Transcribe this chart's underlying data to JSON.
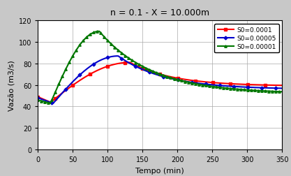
{
  "title": "n = 0.1 - X = 10.000m",
  "xlabel": "Tempo (min)",
  "ylabel": "Vazão (m3/s)",
  "xlim": [
    0,
    350
  ],
  "ylim": [
    0,
    120
  ],
  "xticks": [
    0,
    50,
    100,
    150,
    200,
    250,
    300,
    350
  ],
  "yticks": [
    0,
    20,
    40,
    60,
    80,
    100,
    120
  ],
  "series": [
    {
      "label": "S0=0.0001",
      "color": "#FF0000",
      "marker": "s",
      "peak_time": 132,
      "peak_val": 81,
      "start_val": 49,
      "min_val": 44,
      "min_time": 18,
      "end_val": 59,
      "marker_every": 25
    },
    {
      "label": "S0=0.00005",
      "color": "#0000CC",
      "marker": "D",
      "peak_time": 115,
      "peak_val": 87,
      "start_val": 48,
      "min_val": 43,
      "min_time": 22,
      "end_val": 56,
      "marker_every": 20
    },
    {
      "label": "S0=0.00001",
      "color": "#007700",
      "marker": "^",
      "peak_time": 88,
      "peak_val": 110,
      "start_val": 46,
      "min_val": 43,
      "min_time": 18,
      "end_val": 52,
      "marker_every": 5
    }
  ],
  "fig_bg": "#c8c8c8",
  "ax_bg": "#ffffff"
}
